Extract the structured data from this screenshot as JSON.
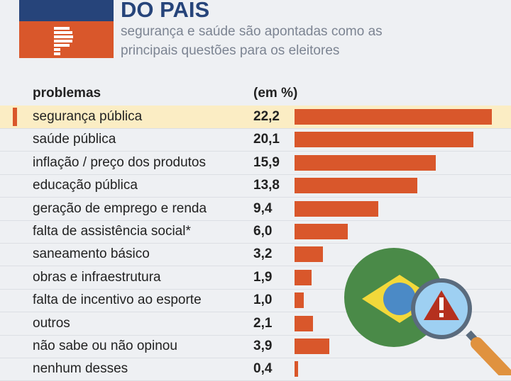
{
  "header": {
    "title": "DO PAIS",
    "subtitle_lines": [
      "segurança e saúde são apontadas como as",
      "principais questões para os eleitores"
    ]
  },
  "colors": {
    "brand_blue": "#26447a",
    "brand_orange": "#d9572b",
    "highlight": "#fbedc4"
  },
  "icons": [
    "logo-p",
    "brazil-flag",
    "magnifier-warning-icon"
  ],
  "chart_data": {
    "type": "bar",
    "orientation": "horizontal",
    "column_headers": [
      "problemas",
      "(em %)"
    ],
    "categories": [
      "segurança pública",
      "saúde pública",
      "inflação / preço dos produtos",
      "educação pública",
      "geração de emprego e renda",
      "falta de assistência social*",
      "saneamento básico",
      "obras e infraestrutura",
      "falta de incentivo ao esporte",
      "outros",
      "não sabe ou não opinou",
      "nenhum desses"
    ],
    "values": [
      22.2,
      20.1,
      15.9,
      13.8,
      9.4,
      6.0,
      3.2,
      1.9,
      1.0,
      2.1,
      3.9,
      0.4
    ],
    "value_labels": [
      "22,2",
      "20,1",
      "15,9",
      "13,8",
      "9,4",
      "6,0",
      "3,2",
      "1,9",
      "1,0",
      "2,1",
      "3,9",
      "0,4"
    ],
    "highlighted": "segurança pública"
  }
}
